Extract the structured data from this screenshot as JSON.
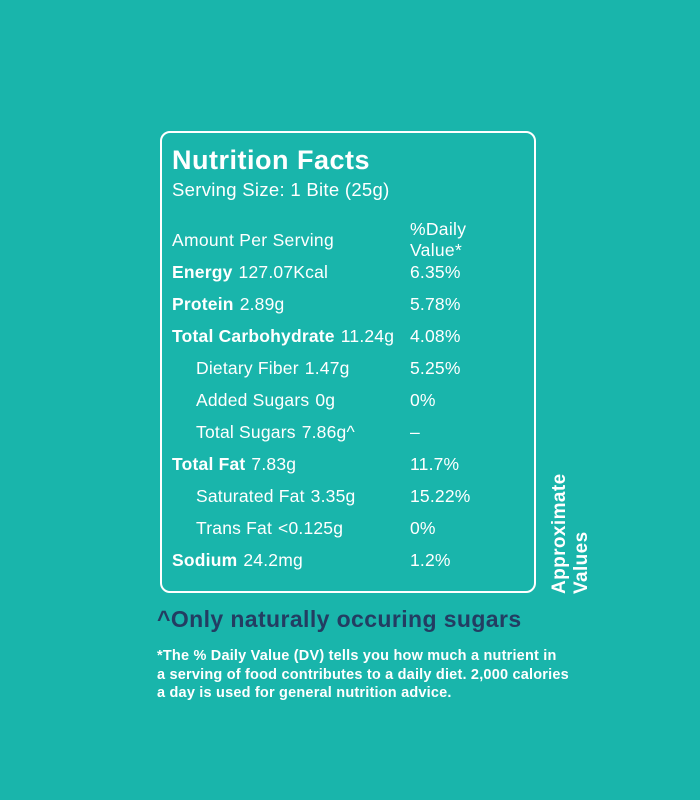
{
  "panel": {
    "title": "Nutrition Facts",
    "serving_size": "Serving Size: 1 Bite (25g)",
    "header": {
      "left": "Amount Per Serving",
      "right": "%Daily Value*"
    },
    "rows": [
      {
        "label": "Energy",
        "value": "127.07Kcal",
        "dv": "6.35%",
        "bold": true,
        "indent": false
      },
      {
        "label": "Protein",
        "value": "2.89g",
        "dv": "5.78%",
        "bold": true,
        "indent": false
      },
      {
        "label": "Total Carbohydrate",
        "value": "11.24g",
        "dv": "4.08%",
        "bold": true,
        "indent": false
      },
      {
        "label": "Dietary Fiber",
        "value": "1.47g",
        "dv": "5.25%",
        "bold": false,
        "indent": true
      },
      {
        "label": "Added Sugars",
        "value": "0g",
        "dv": "0%",
        "bold": false,
        "indent": true
      },
      {
        "label": "Total Sugars",
        "value": "7.86g^",
        "dv": "–",
        "bold": false,
        "indent": true
      },
      {
        "label": "Total Fat",
        "value": "7.83g",
        "dv": "11.7%",
        "bold": true,
        "indent": false
      },
      {
        "label": "Saturated Fat",
        "value": "3.35g",
        "dv": "15.22%",
        "bold": false,
        "indent": true
      },
      {
        "label": "Trans Fat",
        "value": "<0.125g",
        "dv": "0%",
        "bold": false,
        "indent": true
      },
      {
        "label": "Sodium",
        "value": "24.2mg",
        "dv": "1.2%",
        "bold": true,
        "indent": false
      }
    ],
    "side_note": "Approximate Values"
  },
  "footer": {
    "sugars_note": "^Only naturally occuring sugars",
    "dv_note_lines": [
      "*The % Daily Value (DV) tells you how much a nutrient in",
      "a serving of food contributes to a daily diet. 2,000 calories",
      "a day is used for general nutrition advice."
    ]
  },
  "colors": {
    "background": "#19B5AB",
    "text_light": "#FFFFFF",
    "text_dark": "#233D62"
  }
}
